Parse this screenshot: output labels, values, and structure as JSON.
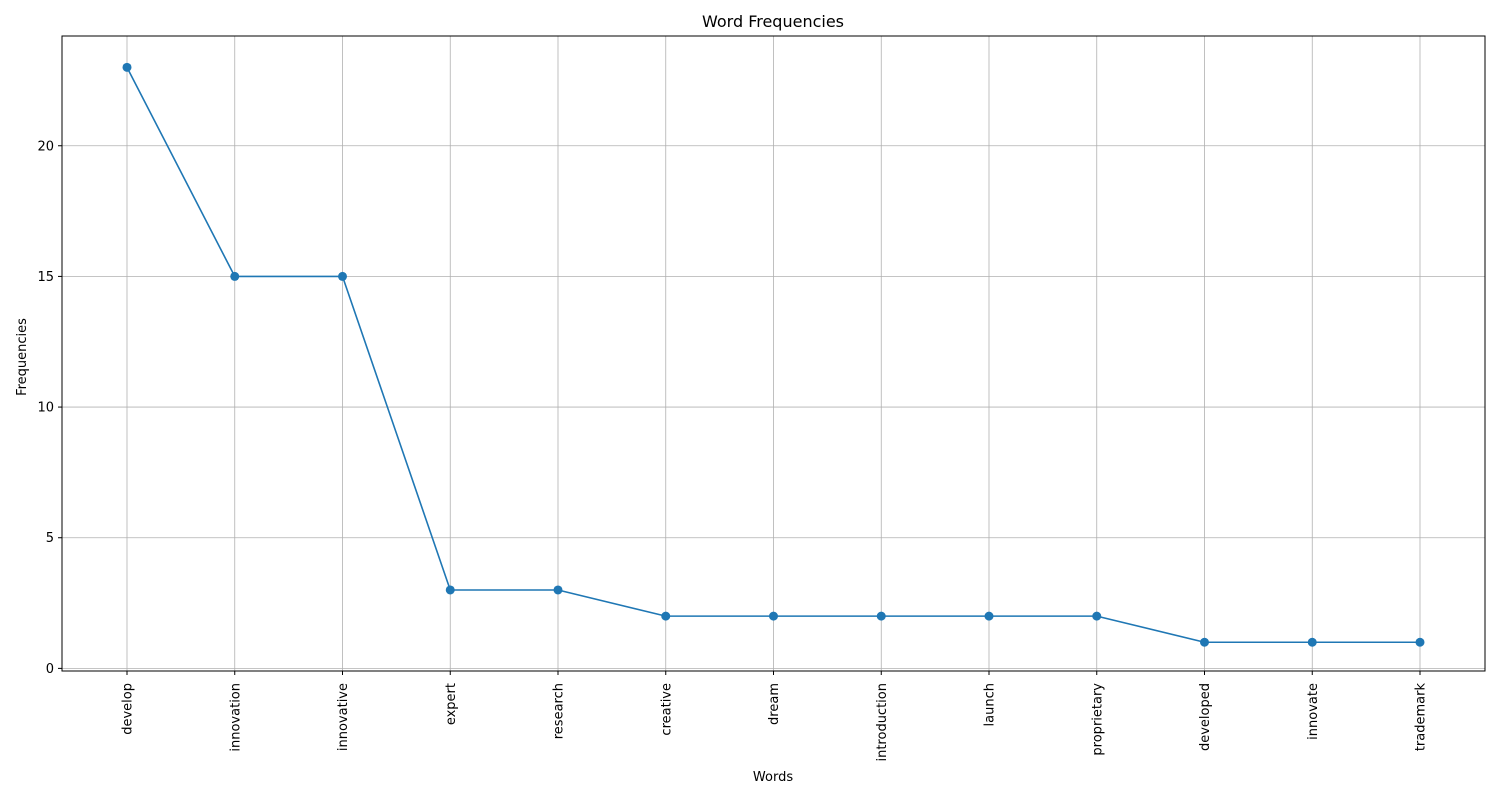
{
  "chart_data": {
    "type": "line",
    "title": "Word Frequencies",
    "xlabel": "Words",
    "ylabel": "Frequencies",
    "categories": [
      "develop",
      "innovation",
      "innovative",
      "expert",
      "research",
      "creative",
      "dream",
      "introduction",
      "launch",
      "proprietary",
      "developed",
      "innovate",
      "trademark"
    ],
    "series": [
      {
        "values": [
          23,
          15,
          15,
          3,
          3,
          2,
          2,
          2,
          2,
          2,
          1,
          1,
          1
        ]
      }
    ],
    "ylim": [
      -0.1,
      24.2
    ],
    "yticks": [
      0,
      5,
      10,
      15,
      20
    ],
    "grid": true,
    "line_color": "#1f77b4",
    "grid_color": "#b0b0b0"
  }
}
